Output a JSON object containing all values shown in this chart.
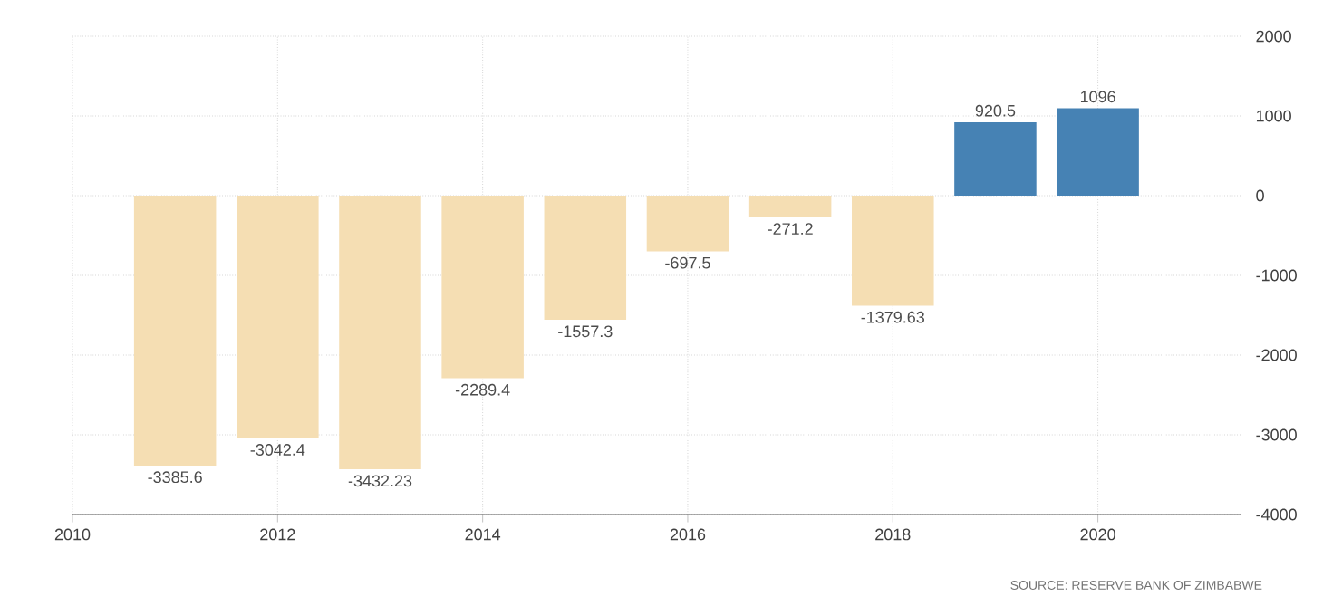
{
  "chart_data": {
    "type": "bar",
    "x": [
      2011,
      2012,
      2013,
      2014,
      2015,
      2016,
      2017,
      2018,
      2019,
      2020
    ],
    "values": [
      -3385.6,
      -3042.4,
      -3432.23,
      -2289.4,
      -1557.3,
      -697.5,
      -271.2,
      -1379.63,
      920.5,
      1096
    ],
    "colors": [
      "#f5deb3",
      "#f5deb3",
      "#f5deb3",
      "#f5deb3",
      "#f5deb3",
      "#f5deb3",
      "#f5deb3",
      "#f5deb3",
      "#4682b4",
      "#4682b4"
    ],
    "xlim": [
      2010,
      2021.4
    ],
    "xticks": [
      2010,
      2012,
      2014,
      2016,
      2018,
      2020
    ],
    "ylim": [
      -4000,
      2000
    ],
    "yticks": [
      -4000,
      -3000,
      -2000,
      -1000,
      0,
      1000,
      2000
    ],
    "grid": true,
    "data_labels": true,
    "annotations": [
      "SOURCE: RESERVE BANK OF ZIMBABWE"
    ]
  }
}
